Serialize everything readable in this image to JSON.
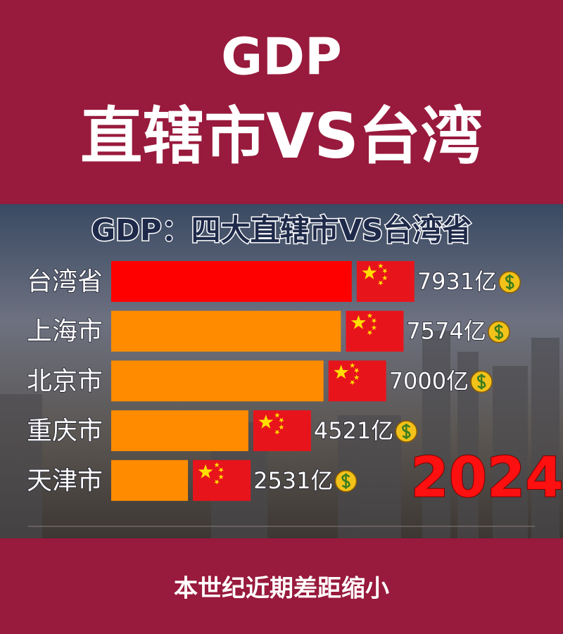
{
  "header": {
    "line1": "GDP",
    "line2": "直辖市VS台湾"
  },
  "chart_data": {
    "type": "bar",
    "orientation": "horizontal",
    "title": "GDP：四大直辖市VS台湾省",
    "categories": [
      "台湾省",
      "上海市",
      "北京市",
      "重庆市",
      "天津市"
    ],
    "values": [
      7931,
      7574,
      7000,
      4521,
      2531
    ],
    "value_labels": [
      "7931亿",
      "7574亿",
      "7000亿",
      "4521亿",
      "2531亿"
    ],
    "colors": [
      "#ff0000",
      "#ff8c00",
      "#ff8c00",
      "#ff8c00",
      "#ff8c00"
    ],
    "xlim": [
      0,
      10000
    ],
    "annotation": "2024"
  },
  "caption": "本世纪近期差距缩小"
}
